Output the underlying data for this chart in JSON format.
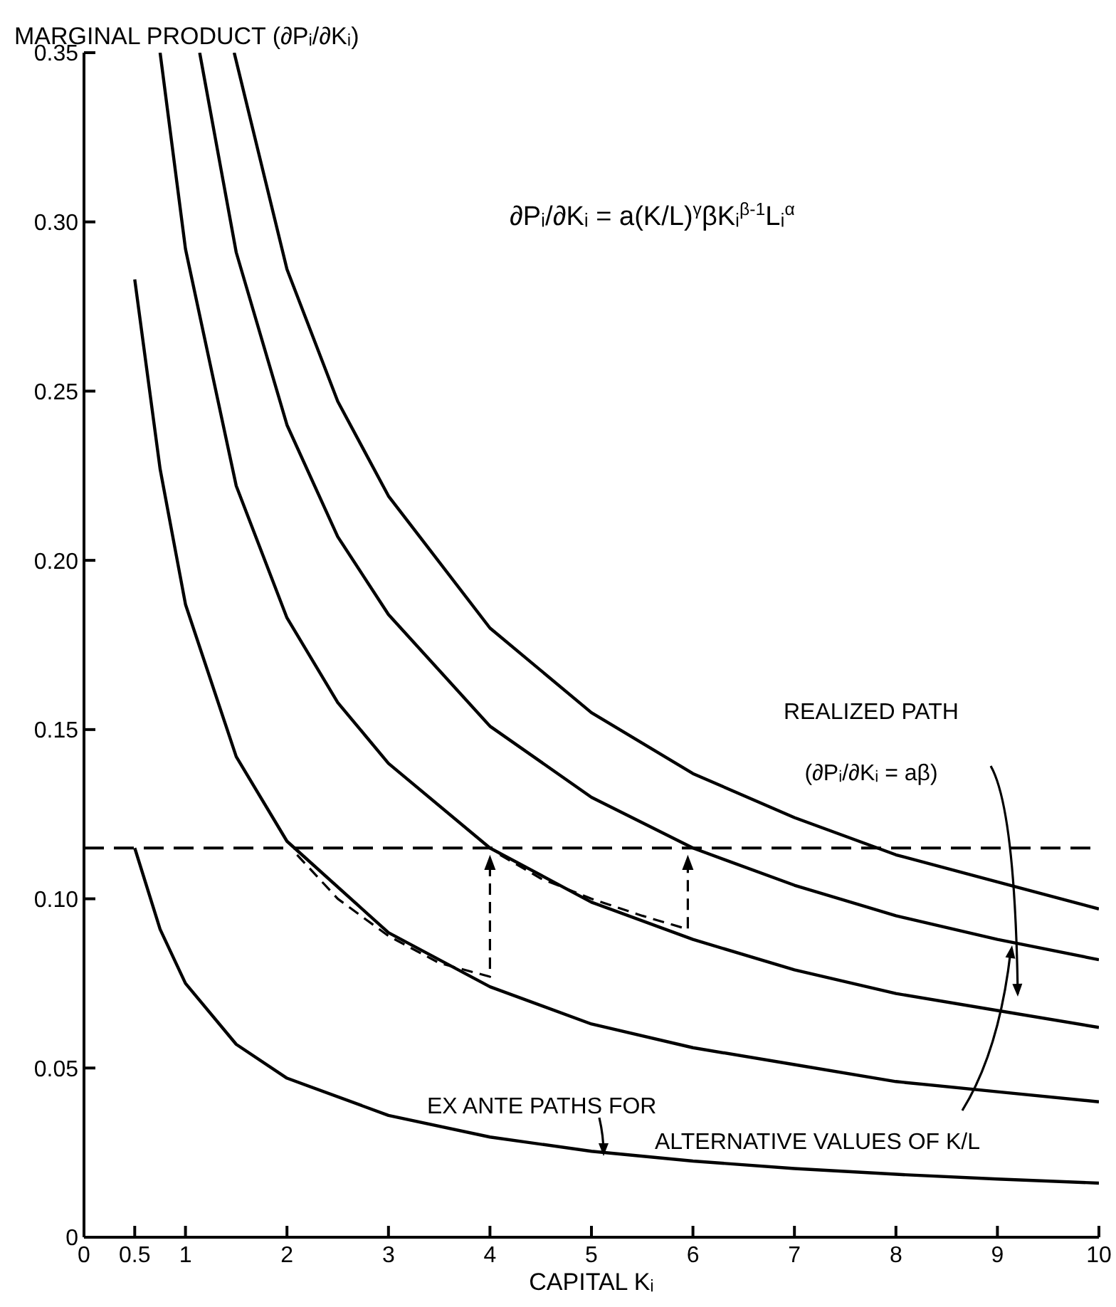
{
  "chart_data": {
    "type": "line",
    "ylabel": "MARGINAL PRODUCT (∂Pᵢ/∂Kᵢ)",
    "xlabel": "CAPITAL Kᵢ",
    "annotations": [
      "∂Pᵢ/∂Kᵢ = a(K/L)$^{γ}$βKᵢ$^{β-1}$Lᵢ$^{α}$",
      "REALIZED PATH",
      "(∂Pᵢ/∂Kᵢ = aβ)",
      "EX ANTE PATHS FOR",
      "ALTERNATIVE VALUES OF K/L"
    ],
    "xlim": [
      0,
      10
    ],
    "xticks": [
      0,
      0.5,
      1,
      2,
      3,
      4,
      5,
      6,
      7,
      8,
      9,
      10
    ],
    "ylim": [
      0,
      0.35
    ],
    "yticks": [
      0,
      0.05,
      {
        "value": 0.1,
        "label": "0.10"
      },
      0.15,
      {
        "value": 0.2,
        "label": "0.20"
      },
      0.25,
      {
        "value": 0.3,
        "label": "0.30"
      },
      0.35
    ],
    "marker": "none",
    "line_style": "solid",
    "ref_lines": [
      {
        "axis": "y",
        "value": 0.115,
        "label": null,
        "line_style": "dashed",
        "color": "#000000"
      }
    ],
    "series": [
      {
        "color": "#000000",
        "x": [
          0.5,
          0.75,
          1,
          1.5,
          2,
          3,
          4,
          5,
          6,
          7,
          8,
          9,
          10
        ],
        "values": [
          0.115,
          0.091,
          0.075,
          0.057,
          0.047,
          0.036,
          0.0296,
          0.0254,
          0.0225,
          0.0203,
          0.0186,
          0.0172,
          0.016
        ]
      },
      {
        "color": "#000000",
        "x": [
          0.5,
          0.75,
          1,
          1.5,
          2,
          3,
          4,
          5,
          6,
          7,
          8,
          9,
          10
        ],
        "values": [
          0.283,
          0.227,
          0.187,
          0.142,
          0.117,
          0.09,
          0.074,
          0.063,
          0.056,
          0.051,
          0.046,
          0.043,
          0.04
        ]
      },
      {
        "color": "#000000",
        "x": [
          0.75,
          1,
          1.5,
          2,
          2.5,
          3,
          4,
          5,
          6,
          7,
          8,
          9,
          10
        ],
        "values": [
          0.35,
          0.292,
          0.222,
          0.183,
          0.158,
          0.14,
          0.115,
          0.099,
          0.088,
          0.079,
          0.072,
          0.067,
          0.062
        ]
      },
      {
        "color": "#000000",
        "x": [
          1.14,
          1.5,
          2,
          2.5,
          3,
          4,
          5,
          6,
          7,
          8,
          9,
          10
        ],
        "values": [
          0.35,
          0.291,
          0.24,
          0.207,
          0.184,
          0.151,
          0.13,
          0.115,
          0.104,
          0.095,
          0.088,
          0.082
        ]
      },
      {
        "color": "#000000",
        "x": [
          1.48,
          2,
          2.5,
          3,
          4,
          5,
          6,
          7,
          8,
          9,
          10
        ],
        "values": [
          0.35,
          0.286,
          0.247,
          0.219,
          0.18,
          0.155,
          0.137,
          0.124,
          0.113,
          0.105,
          0.097
        ]
      }
    ]
  }
}
